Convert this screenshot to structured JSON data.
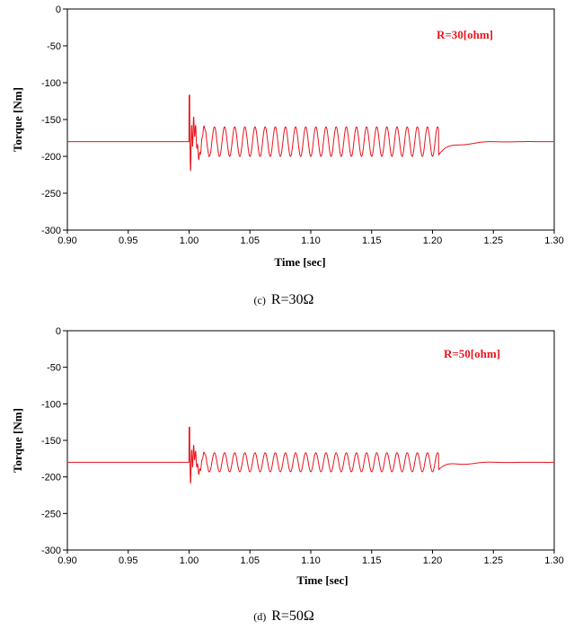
{
  "chart_data": [
    {
      "type": "line",
      "caption_prefix": "(c)",
      "caption_text": "R=30Ω",
      "annotation": "R=30[ohm]",
      "xlabel": "Time [sec]",
      "ylabel": "Torque [Nm]",
      "xlim": [
        0.9,
        1.3
      ],
      "ylim": [
        -300,
        0
      ],
      "xticks": [
        "0.90",
        "0.95",
        "1.00",
        "1.05",
        "1.10",
        "1.15",
        "1.20",
        "1.25",
        "1.30"
      ],
      "yticks": [
        "0",
        "-50",
        "-100",
        "-150",
        "-200",
        "-250",
        "-300"
      ],
      "grid": false,
      "color": "#e8141c",
      "series": [
        {
          "steady_value": -180,
          "fault_start": 1.0,
          "fault_end": 1.205,
          "oscillation_center": -180,
          "oscillation_amplitude": 20,
          "oscillation_frequency_hz": 120,
          "initial_peak": -117,
          "post_fault_min": -198,
          "settle_time": 1.25
        }
      ]
    },
    {
      "type": "line",
      "caption_prefix": "(d)",
      "caption_text": "R=50Ω",
      "annotation": "R=50[ohm]",
      "xlabel": "Time [sec]",
      "ylabel": "Torque [Nm]",
      "xlim": [
        0.9,
        1.3
      ],
      "ylim": [
        -300,
        0
      ],
      "xticks": [
        "0.90",
        "0.95",
        "1.00",
        "1.05",
        "1.10",
        "1.15",
        "1.20",
        "1.25",
        "1.30"
      ],
      "yticks": [
        "0",
        "-50",
        "-100",
        "-150",
        "-200",
        "-250",
        "-300"
      ],
      "grid": false,
      "color": "#e8141c",
      "series": [
        {
          "steady_value": -180,
          "fault_start": 1.0,
          "fault_end": 1.205,
          "oscillation_center": -180,
          "oscillation_amplitude": 13,
          "oscillation_frequency_hz": 120,
          "initial_peak": -132,
          "post_fault_min": -190,
          "settle_time": 1.25
        }
      ]
    }
  ]
}
